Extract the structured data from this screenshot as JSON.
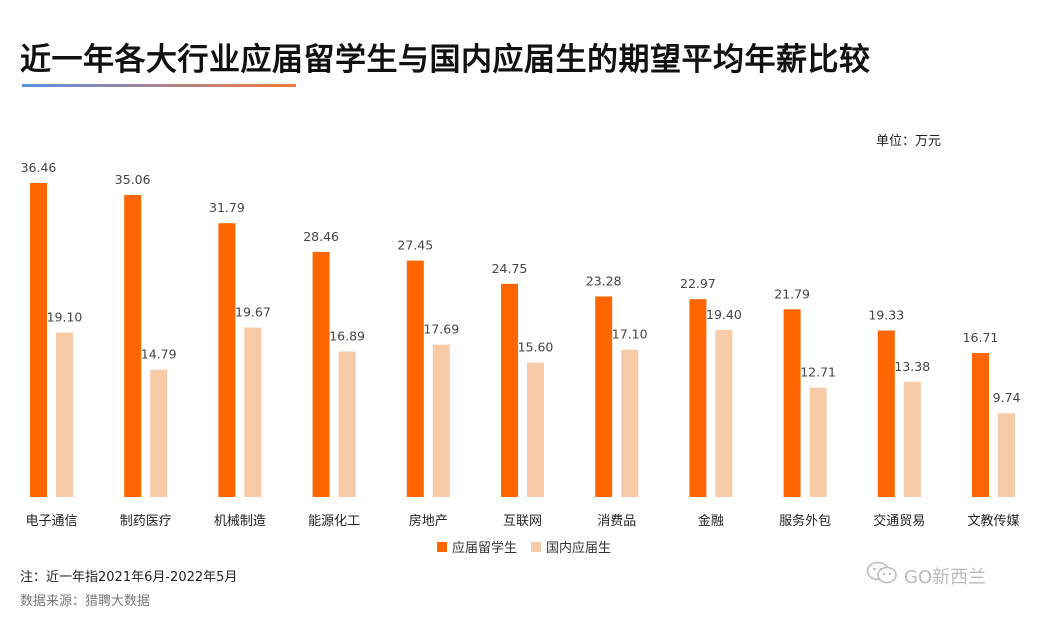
{
  "title": "近一年各大行业应届留学生与国内应届生的期望平均年薪比较",
  "unit": "单位：万元",
  "note": "注：近一年指2021年6月-2022年5月",
  "source": "数据来源：猎聘大数据",
  "watermark": {
    "text": "GO新西兰",
    "icon": "wechat-icon"
  },
  "colors": {
    "series1": "#ff6600",
    "series2": "#f8cba8",
    "title_rule_start": "#5b8ee6",
    "title_rule_end": "#f07a3c"
  },
  "chart_data": {
    "type": "bar",
    "title": "近一年各大行业应届留学生与国内应届生的期望平均年薪比较",
    "unit": "万元",
    "categories": [
      "电子通信",
      "制药医疗",
      "机械制造",
      "能源化工",
      "房地产",
      "互联网",
      "消费品",
      "金融",
      "服务外包",
      "交通贸易",
      "文教传媒"
    ],
    "series": [
      {
        "name": "应届留学生",
        "color": "#ff6600",
        "values": [
          36.46,
          35.06,
          31.79,
          28.46,
          27.45,
          24.75,
          23.28,
          22.97,
          21.79,
          19.33,
          16.71
        ]
      },
      {
        "name": "国内应届生",
        "color": "#f8cba8",
        "values": [
          19.1,
          14.79,
          19.67,
          16.89,
          17.69,
          15.6,
          17.1,
          19.4,
          12.71,
          13.38,
          9.74
        ]
      }
    ],
    "ylim": [
      0,
      36.46
    ],
    "grid": false,
    "legend_position": "bottom"
  }
}
